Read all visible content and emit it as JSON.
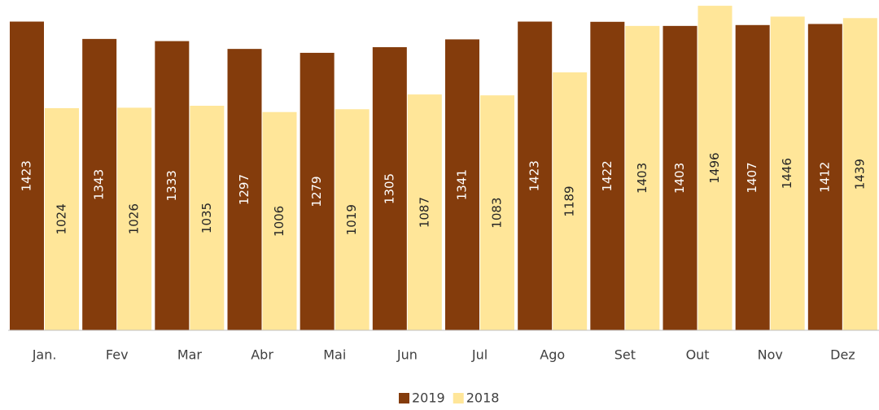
{
  "chart_data": {
    "type": "bar",
    "categories": [
      "Jan.",
      "Fev",
      "Mar",
      "Abr",
      "Mai",
      "Jun",
      "Jul",
      "Ago",
      "Set",
      "Out",
      "Nov",
      "Dez"
    ],
    "series": [
      {
        "name": "2019",
        "color": "#843c0c",
        "values": [
          1423,
          1343,
          1333,
          1297,
          1279,
          1305,
          1341,
          1423,
          1422,
          1403,
          1407,
          1412
        ]
      },
      {
        "name": "2018",
        "color": "#ffe699",
        "values": [
          1024,
          1026,
          1035,
          1006,
          1019,
          1087,
          1083,
          1189,
          1403,
          1496,
          1446,
          1439
        ]
      }
    ],
    "ylim": [
      0,
      1500
    ]
  }
}
